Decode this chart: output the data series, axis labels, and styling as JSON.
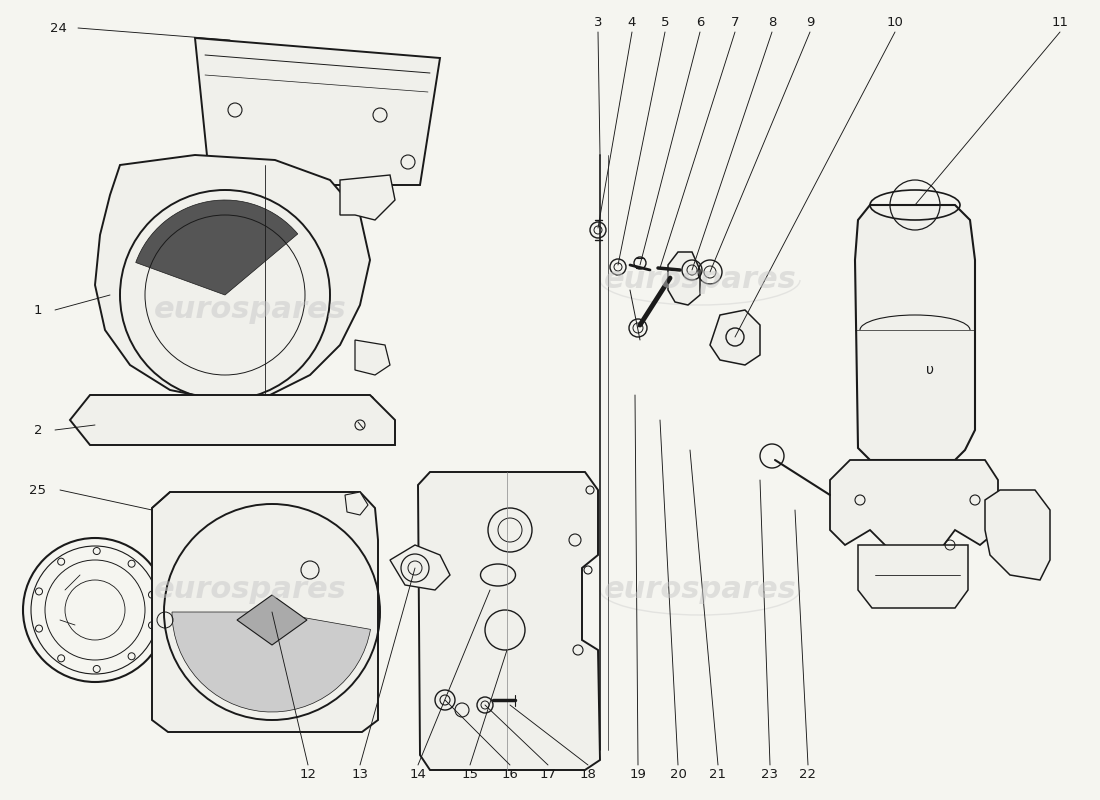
{
  "background_color": "#f5f5f0",
  "line_color": "#1a1a1a",
  "lw_main": 1.3,
  "lw_thin": 0.7,
  "lw_leader": 0.7,
  "watermark_color": "#c8c8c8",
  "watermark_text": "eurospares",
  "figsize": [
    11.0,
    8.0
  ],
  "dpi": 100,
  "xlim": [
    0,
    1100
  ],
  "ylim": [
    0,
    800
  ]
}
